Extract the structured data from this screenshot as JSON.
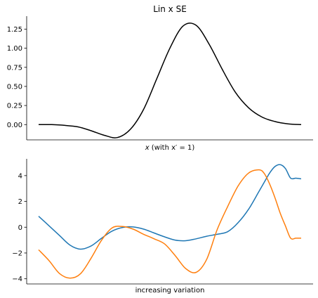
{
  "chart_data": [
    {
      "type": "line",
      "title": "Lin x SE",
      "xlabel_prefix": "x",
      "xlabel_suffix": " (with x′ = 1)",
      "ylabel": "",
      "ylim": [
        -0.2,
        1.42
      ],
      "yticks": [
        0.0,
        0.25,
        0.5,
        0.75,
        1.0,
        1.25
      ],
      "ytick_labels": [
        "0.00",
        "0.25",
        "0.50",
        "0.75",
        "1.00",
        "1.25"
      ],
      "grid": false,
      "series": [
        {
          "color": "#000000",
          "x": [
            0,
            5,
            10,
            15,
            20,
            25,
            30,
            35,
            40,
            45,
            50,
            55,
            60,
            65,
            70,
            75,
            80,
            85,
            90,
            95,
            100
          ],
          "y": [
            0.0,
            0.0,
            -0.01,
            -0.03,
            -0.08,
            -0.14,
            -0.17,
            -0.06,
            0.2,
            0.6,
            1.0,
            1.29,
            1.3,
            1.05,
            0.72,
            0.42,
            0.22,
            0.1,
            0.04,
            0.01,
            0.0
          ]
        }
      ]
    },
    {
      "type": "line",
      "title": "",
      "xlabel": "increasing variation",
      "ylabel": "",
      "ylim": [
        -4.4,
        5.3
      ],
      "yticks": [
        -4,
        -2,
        0,
        2,
        4
      ],
      "ytick_labels": [
        "−4",
        "−2",
        "0",
        "2",
        "4"
      ],
      "grid": false,
      "series": [
        {
          "color": "#1f77b4",
          "x": [
            0,
            4,
            8,
            12,
            16,
            20,
            24,
            28,
            32,
            36,
            40,
            44,
            48,
            52,
            56,
            60,
            64,
            68,
            72,
            76,
            80,
            84,
            86,
            88,
            90,
            92,
            94,
            96,
            98,
            100
          ],
          "y": [
            0.85,
            0.1,
            -0.65,
            -1.4,
            -1.7,
            -1.45,
            -0.85,
            -0.3,
            -0.02,
            0.02,
            -0.15,
            -0.45,
            -0.75,
            -1.0,
            -1.05,
            -0.9,
            -0.7,
            -0.55,
            -0.35,
            0.35,
            1.4,
            2.8,
            3.5,
            4.2,
            4.7,
            4.85,
            4.55,
            3.8,
            3.8,
            3.75
          ]
        },
        {
          "color": "#ff7f0e",
          "x": [
            0,
            4,
            8,
            12,
            16,
            20,
            24,
            28,
            32,
            36,
            40,
            44,
            48,
            52,
            56,
            60,
            64,
            68,
            72,
            76,
            80,
            84,
            86,
            88,
            90,
            92,
            94,
            96,
            98,
            100
          ],
          "y": [
            -1.75,
            -2.6,
            -3.6,
            -3.95,
            -3.6,
            -2.4,
            -1.0,
            -0.05,
            0.05,
            -0.15,
            -0.55,
            -0.9,
            -1.3,
            -2.2,
            -3.2,
            -3.5,
            -2.5,
            -0.2,
            1.6,
            3.2,
            4.2,
            4.45,
            4.15,
            3.35,
            2.3,
            1.1,
            0.1,
            -0.85,
            -0.85,
            -0.85
          ]
        }
      ]
    }
  ]
}
